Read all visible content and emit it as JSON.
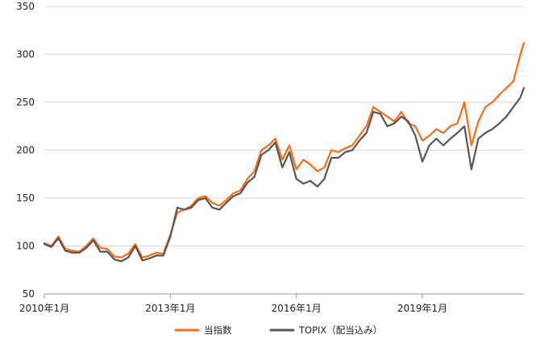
{
  "chart_data": {
    "type": "line",
    "title": "",
    "xlabel": "",
    "ylabel": "",
    "ylim": [
      50,
      350
    ],
    "yticks": [
      "50",
      "100",
      "150",
      "200",
      "250",
      "300",
      "350"
    ],
    "xticks": [
      {
        "label": "2010年1月",
        "x": "2010-01"
      },
      {
        "label": "2013年1月",
        "x": "2013-01"
      },
      {
        "label": "2016年1月",
        "x": "2016-01"
      },
      {
        "label": "2019年1月",
        "x": "2019-01"
      }
    ],
    "xlim": [
      "2010-01",
      "2021-06"
    ],
    "grid": "horizontal",
    "legend_position": "bottom",
    "x": [
      "2010-01",
      "2010-03",
      "2010-05",
      "2010-07",
      "2010-09",
      "2010-11",
      "2011-01",
      "2011-03",
      "2011-05",
      "2011-07",
      "2011-09",
      "2011-11",
      "2012-01",
      "2012-03",
      "2012-05",
      "2012-07",
      "2012-09",
      "2012-11",
      "2013-01",
      "2013-03",
      "2013-05",
      "2013-07",
      "2013-09",
      "2013-11",
      "2014-01",
      "2014-03",
      "2014-05",
      "2014-07",
      "2014-09",
      "2014-11",
      "2015-01",
      "2015-03",
      "2015-05",
      "2015-07",
      "2015-09",
      "2015-11",
      "2016-01",
      "2016-03",
      "2016-05",
      "2016-07",
      "2016-09",
      "2016-11",
      "2017-01",
      "2017-03",
      "2017-05",
      "2017-07",
      "2017-09",
      "2017-11",
      "2018-01",
      "2018-03",
      "2018-05",
      "2018-07",
      "2018-09",
      "2018-11",
      "2019-01",
      "2019-03",
      "2019-05",
      "2019-07",
      "2019-09",
      "2019-11",
      "2020-01",
      "2020-03",
      "2020-05",
      "2020-07",
      "2020-09",
      "2020-11",
      "2021-01",
      "2021-03",
      "2021-05",
      "2021-06"
    ],
    "series": [
      {
        "name": "当指数",
        "color": "#ff6a13",
        "values": [
          103,
          100,
          110,
          97,
          95,
          94,
          100,
          108,
          98,
          97,
          89,
          88,
          92,
          102,
          88,
          90,
          93,
          92,
          112,
          135,
          138,
          142,
          150,
          152,
          145,
          142,
          148,
          155,
          158,
          170,
          178,
          200,
          205,
          212,
          190,
          205,
          180,
          190,
          185,
          178,
          182,
          200,
          198,
          202,
          205,
          215,
          225,
          245,
          240,
          235,
          230,
          240,
          228,
          225,
          210,
          215,
          222,
          218,
          225,
          228,
          250,
          205,
          230,
          245,
          250,
          258,
          265,
          272,
          300,
          312
        ]
      },
      {
        "name": "TOPIX（配当込み）",
        "color": "#555555",
        "values": [
          102,
          99,
          108,
          95,
          93,
          93,
          98,
          106,
          94,
          94,
          86,
          84,
          88,
          100,
          85,
          87,
          90,
          90,
          110,
          140,
          138,
          140,
          148,
          150,
          140,
          138,
          145,
          152,
          155,
          166,
          172,
          195,
          200,
          208,
          182,
          198,
          170,
          165,
          168,
          162,
          170,
          192,
          192,
          198,
          200,
          210,
          218,
          240,
          238,
          225,
          228,
          235,
          230,
          215,
          188,
          205,
          212,
          205,
          212,
          218,
          225,
          180,
          212,
          218,
          222,
          228,
          235,
          245,
          255,
          265
        ]
      }
    ]
  }
}
